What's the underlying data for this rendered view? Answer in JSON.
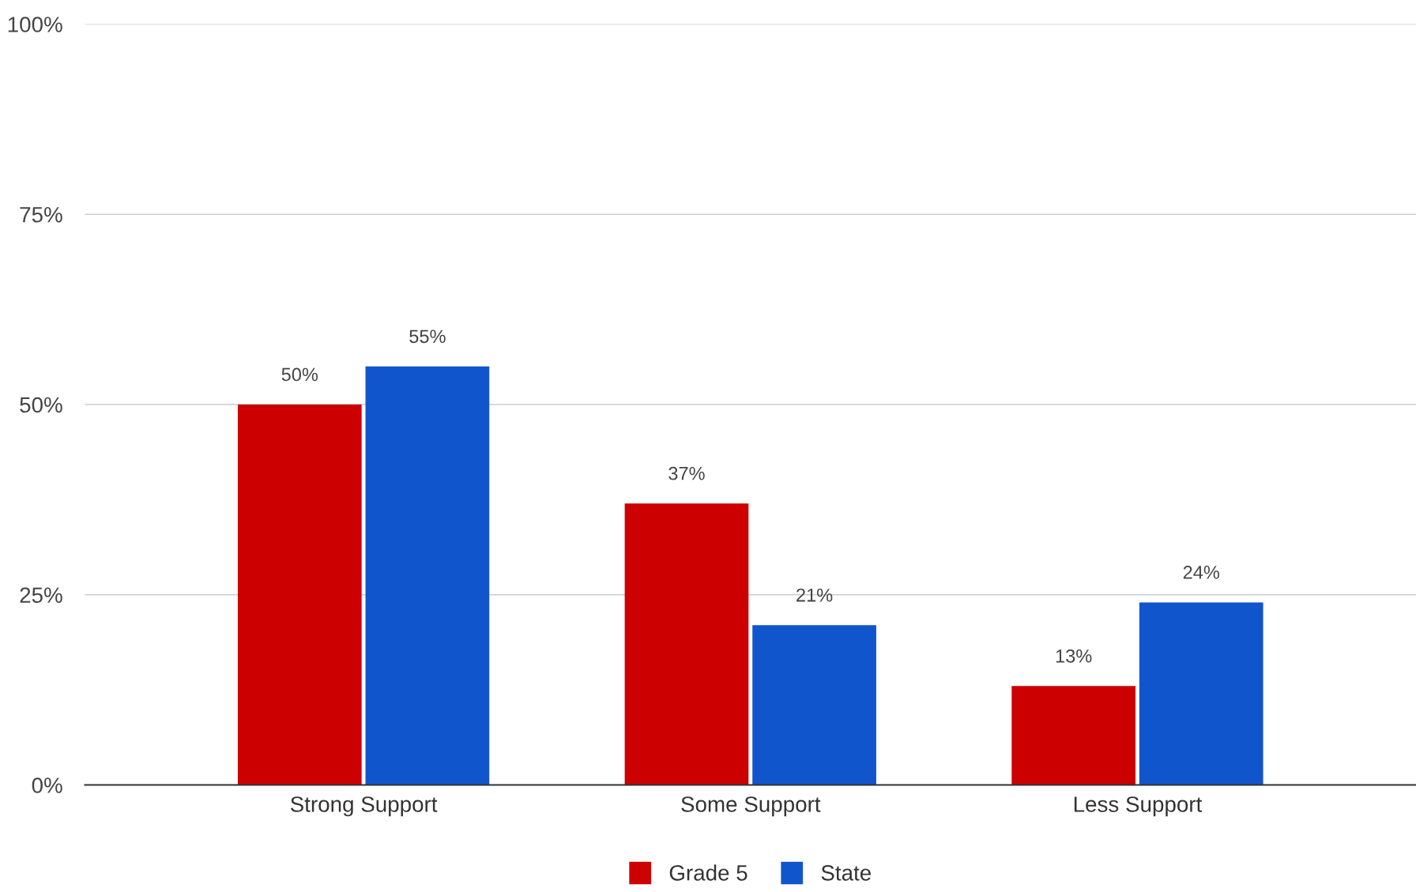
{
  "chart_data": {
    "type": "bar",
    "categories": [
      "Strong Support",
      "Some Support",
      "Less Support"
    ],
    "series": [
      {
        "name": "Grade 5",
        "color": "#cc0000",
        "values": [
          50,
          37,
          13
        ],
        "value_labels": [
          "50%",
          "37%",
          "13%"
        ]
      },
      {
        "name": "State",
        "color": "#1155cc",
        "values": [
          55,
          21,
          24
        ],
        "value_labels": [
          "55%",
          "21%",
          "24%"
        ]
      }
    ],
    "ylim": [
      0,
      100
    ],
    "yticks": [
      {
        "value": 0,
        "label": "0%"
      },
      {
        "value": 25,
        "label": "25%"
      },
      {
        "value": 50,
        "label": "50%"
      },
      {
        "value": 75,
        "label": "75%"
      },
      {
        "value": 100,
        "label": "100%"
      }
    ],
    "grid": "y",
    "legend": "bottom"
  }
}
